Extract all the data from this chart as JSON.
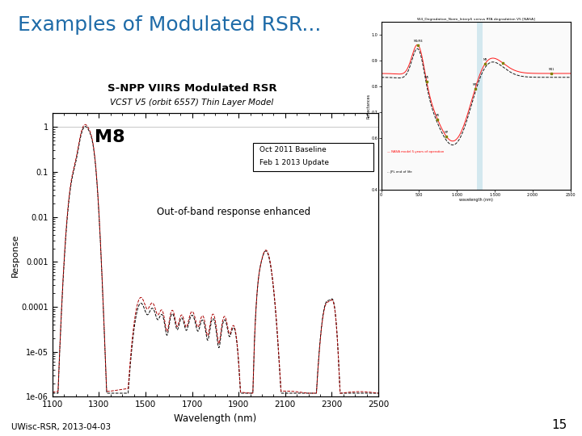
{
  "title": "Examples of Modulated RSR...",
  "title_color": "#1E6BA8",
  "title_fontsize": 18,
  "background_color": "#FFFFFF",
  "slide_label": "15",
  "footer": "UWisc-RSR, 2013-04-03",
  "main_plot_title": "S-NPP VIIRS Modulated RSR",
  "main_plot_subtitle": "VCST V5 (orbit 6557) Thin Layer Model",
  "band_label": "M8",
  "annotation": "Out-of-band response enhanced",
  "legend_line1": "Oct 2011 Baseline",
  "legend_line2": "Feb 1 2013 Update",
  "xlabel": "Wavelength (nm)",
  "ylabel": "Response",
  "xlim": [
    1100,
    2500
  ],
  "xticks": [
    1100,
    1300,
    1500,
    1700,
    1900,
    2100,
    2300,
    2500
  ],
  "ytick_labels": [
    "1e-06",
    "1e-05",
    "0.0001",
    "0.001",
    "0.01",
    "0.1",
    "1"
  ],
  "line_color_black": "#000000",
  "line_color_red": "#AA0000"
}
